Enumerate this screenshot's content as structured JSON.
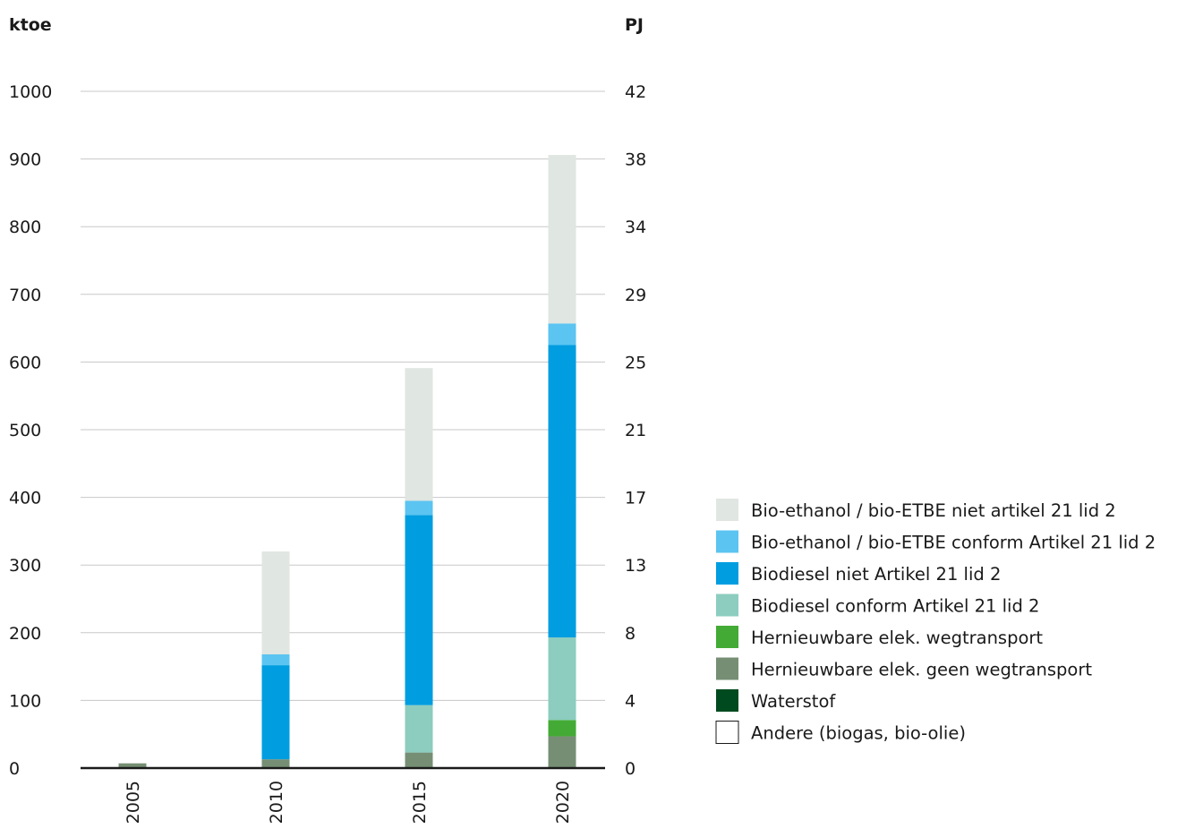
{
  "chart_data": {
    "type": "bar",
    "stacked": true,
    "left_unit": "ktoe",
    "right_unit": "PJ",
    "categories": [
      "2005",
      "2010",
      "2015",
      "2020"
    ],
    "ylim": [
      0,
      1000
    ],
    "left_ticks": [
      "0",
      "100",
      "200",
      "300",
      "400",
      "500",
      "600",
      "700",
      "800",
      "900",
      "1000"
    ],
    "right_ticks": [
      "0",
      "4",
      "8",
      "13",
      "17",
      "21",
      "25",
      "29",
      "34",
      "38",
      "42"
    ],
    "grid": true,
    "legend_position": "right",
    "series": [
      {
        "name": "Andere (biogas, bio-olie)",
        "color": "#ffffff",
        "values": [
          0,
          0,
          0,
          0
        ]
      },
      {
        "name": "Waterstof",
        "color": "#004a1f",
        "values": [
          0,
          0,
          0,
          0
        ]
      },
      {
        "name": "Hernieuwbare elek. geen wegtransport",
        "color": "#768f74",
        "values": [
          7,
          13,
          23,
          47
        ]
      },
      {
        "name": "Hernieuwbare elek. wegtransport",
        "color": "#43ab35",
        "values": [
          0,
          0,
          0,
          24
        ]
      },
      {
        "name": "Biodiesel conform Artikel 21 lid 2",
        "color": "#8ccdbf",
        "values": [
          0,
          0,
          70,
          122
        ]
      },
      {
        "name": "Biodiesel niet Artikel 21 lid 2",
        "color": "#009de0",
        "values": [
          0,
          139,
          281,
          432
        ]
      },
      {
        "name": "Bio-ethanol / bio-ETBE conform Artikel 21 lid 2",
        "color": "#5bc4f1",
        "values": [
          0,
          16,
          21,
          32
        ]
      },
      {
        "name": "Bio-ethanol / bio-ETBE niet artikel 21 lid 2",
        "color": "#e0e6e1",
        "values": [
          0,
          152,
          196,
          249
        ]
      }
    ],
    "legend_order": [
      "Bio-ethanol / bio-ETBE niet artikel 21 lid 2",
      "Bio-ethanol / bio-ETBE conform Artikel 21 lid 2",
      "Biodiesel niet Artikel 21 lid 2",
      "Biodiesel conform Artikel 21 lid 2",
      "Hernieuwbare elek. wegtransport",
      "Hernieuwbare elek. geen wegtransport",
      "Waterstof",
      "Andere (biogas, bio-olie)"
    ]
  }
}
